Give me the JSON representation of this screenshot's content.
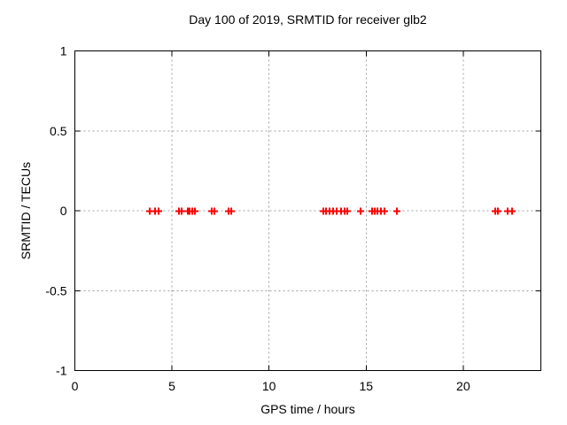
{
  "chart_data": {
    "type": "scatter",
    "title": "Day 100 of 2019, SRMTID for receiver glb2",
    "xlabel": "GPS time / hours",
    "ylabel": "SRMTID / TECUs",
    "xlim": [
      0,
      24
    ],
    "ylim": [
      -1,
      1
    ],
    "xticks": [
      0,
      5,
      10,
      15,
      20
    ],
    "xtick_labels": [
      "0",
      "5",
      "10",
      "15",
      "20"
    ],
    "yticks": [
      -1,
      -0.5,
      0,
      0.5,
      1
    ],
    "ytick_labels": [
      "-1",
      "-0.5",
      "0",
      "0.5",
      "1"
    ],
    "grid": true,
    "legend_position": "none",
    "marker": "plus",
    "marker_color": "#ff0000",
    "grid_color": "#a0a0a0",
    "axis_color": "#000000",
    "background_color": "#ffffff",
    "series": [
      {
        "name": "SRMTID",
        "x": [
          3.85,
          4.15,
          4.3,
          5.35,
          5.5,
          5.8,
          5.9,
          6.05,
          6.2,
          7.05,
          7.2,
          7.9,
          8.05,
          12.8,
          12.95,
          13.1,
          13.3,
          13.5,
          13.7,
          13.9,
          14.05,
          14.7,
          15.3,
          15.45,
          15.6,
          15.75,
          15.95,
          16.6,
          21.65,
          21.8,
          22.3,
          22.5
        ],
        "y": [
          0,
          0,
          0,
          0,
          0,
          0,
          0,
          0,
          0,
          0,
          0,
          0,
          0,
          0,
          0,
          0,
          0,
          0,
          0,
          0,
          0,
          0,
          0,
          0,
          0,
          0,
          0,
          0,
          0,
          0,
          0,
          0
        ]
      }
    ]
  }
}
